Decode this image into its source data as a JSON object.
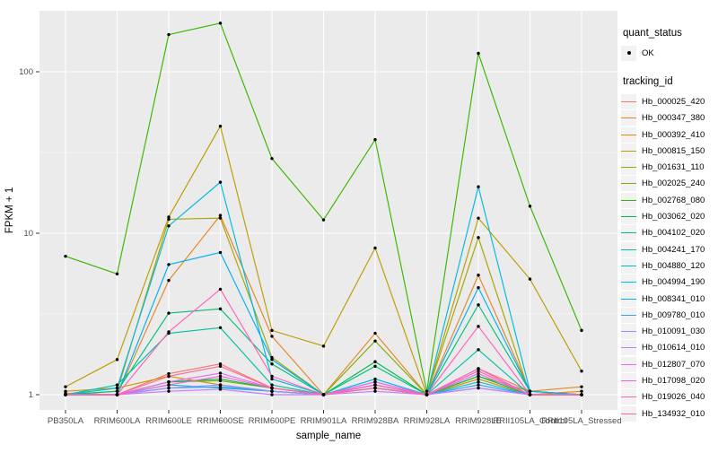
{
  "figure": {
    "colors": {
      "panel_bg": "#EBEBEB",
      "grid": "#FFFFFF",
      "axis_text": "#4D4D4D",
      "tick_mark": "#333333",
      "title_text": "#000000",
      "legend_key_bg": "#F2F2F2",
      "point": "#000000"
    }
  },
  "chart_data": {
    "type": "line",
    "title": "",
    "xlabel": "sample_name",
    "ylabel": "FPKM + 1",
    "y_scale": "log10",
    "y_ticks": [
      1,
      10,
      100
    ],
    "y_tick_labels": [
      "1",
      "10",
      "100"
    ],
    "y_minor_ticks": [
      3.1623,
      31.623
    ],
    "ylim": [
      0.95,
      250
    ],
    "grid": true,
    "legend_position": "right",
    "point_color": "#000000",
    "legends": {
      "quant_status": {
        "title": "quant_status",
        "items": [
          {
            "label": "OK",
            "marker": "black-point"
          }
        ]
      },
      "tracking_id": {
        "title": "tracking_id"
      }
    },
    "categories": [
      "PB350LA",
      "RRIM600LA",
      "RRIM600LE",
      "RRIM600SE",
      "RRIM600PE",
      "RRIM901LA",
      "RRIM928BA",
      "RRIM928LA",
      "RRIM928LE",
      "RRII105LA_Control",
      "RRII105LA_Stressed"
    ],
    "series": [
      {
        "name": "Hb_000025_420",
        "color": "#F8766D",
        "values": [
          1.0,
          1.0,
          1.35,
          1.55,
          1.1,
          1.0,
          1.15,
          1.0,
          1.45,
          1.05,
          1.0
        ]
      },
      {
        "name": "Hb_000347_380",
        "color": "#E88526",
        "values": [
          1.02,
          1.0,
          5.1,
          12.9,
          2.3,
          1.0,
          2.4,
          1.0,
          5.5,
          1.05,
          1.12
        ]
      },
      {
        "name": "Hb_000392_410",
        "color": "#D39200",
        "values": [
          1.05,
          1.1,
          1.3,
          1.15,
          1.05,
          1.0,
          1.1,
          1.0,
          1.25,
          1.0,
          1.05
        ]
      },
      {
        "name": "Hb_000815_150",
        "color": "#BB9D00",
        "values": [
          1.12,
          1.65,
          12.6,
          46,
          2.5,
          2.0,
          8.1,
          1.0,
          12.4,
          5.2,
          1.4
        ]
      },
      {
        "name": "Hb_001631_110",
        "color": "#A3A500",
        "values": [
          1.0,
          1.05,
          12.2,
          12.4,
          1.7,
          1.0,
          1.1,
          1.0,
          9.4,
          1.0,
          1.0
        ]
      },
      {
        "name": "Hb_002025_240",
        "color": "#7CAE00",
        "values": [
          1.0,
          1.0,
          1.2,
          1.22,
          1.1,
          1.0,
          2.15,
          1.0,
          1.3,
          1.05,
          1.0
        ]
      },
      {
        "name": "Hb_002768_080",
        "color": "#39B600",
        "values": [
          7.2,
          5.6,
          170,
          200,
          29,
          12.1,
          38,
          1.05,
          130,
          14.7,
          2.5
        ]
      },
      {
        "name": "Hb_003062_020",
        "color": "#00BB4E",
        "values": [
          1.0,
          1.0,
          1.2,
          1.25,
          1.1,
          1.0,
          1.6,
          1.0,
          1.3,
          1.0,
          1.0
        ]
      },
      {
        "name": "Hb_004102_020",
        "color": "#00BF7D",
        "values": [
          1.0,
          1.05,
          3.2,
          3.4,
          1.55,
          1.0,
          1.5,
          1.0,
          3.6,
          1.05,
          1.0
        ]
      },
      {
        "name": "Hb_004241_170",
        "color": "#00C1A3",
        "values": [
          1.0,
          1.15,
          2.4,
          2.6,
          1.15,
          1.0,
          1.1,
          1.0,
          1.9,
          1.0,
          1.0
        ]
      },
      {
        "name": "Hb_004880_120",
        "color": "#00BFC4",
        "values": [
          1.0,
          1.0,
          1.15,
          1.1,
          1.05,
          1.0,
          1.1,
          1.0,
          1.2,
          1.0,
          1.0
        ]
      },
      {
        "name": "Hb_004994_190",
        "color": "#00BAE0",
        "values": [
          1.0,
          1.1,
          11.1,
          20.7,
          1.25,
          1.0,
          1.15,
          1.0,
          19.4,
          1.05,
          1.0
        ]
      },
      {
        "name": "Hb_008341_010",
        "color": "#00B0F6",
        "values": [
          1.0,
          1.0,
          6.4,
          7.6,
          1.65,
          1.0,
          1.25,
          1.0,
          4.6,
          1.05,
          1.0
        ]
      },
      {
        "name": "Hb_009780_010",
        "color": "#35A2FF",
        "values": [
          1.0,
          1.0,
          1.1,
          1.12,
          1.05,
          1.0,
          1.2,
          1.0,
          1.15,
          1.0,
          1.0
        ]
      },
      {
        "name": "Hb_010091_030",
        "color": "#9590FF",
        "values": [
          1.0,
          1.0,
          1.1,
          1.15,
          1.05,
          1.0,
          1.1,
          1.0,
          1.1,
          1.0,
          1.0
        ]
      },
      {
        "name": "Hb_010614_010",
        "color": "#C77CFF",
        "values": [
          1.0,
          1.0,
          1.05,
          1.08,
          1.0,
          1.0,
          1.05,
          1.0,
          1.1,
          1.0,
          1.0
        ]
      },
      {
        "name": "Hb_012807_070",
        "color": "#E76BF3",
        "values": [
          1.0,
          1.0,
          1.2,
          1.36,
          1.1,
          1.0,
          1.15,
          1.0,
          1.35,
          1.0,
          1.0
        ]
      },
      {
        "name": "Hb_017098_020",
        "color": "#FA62DB",
        "values": [
          1.0,
          1.0,
          1.15,
          1.3,
          1.1,
          1.0,
          1.2,
          1.0,
          1.45,
          1.0,
          1.0
        ]
      },
      {
        "name": "Hb_019026_040",
        "color": "#FF62BC",
        "values": [
          1.0,
          1.0,
          2.45,
          4.5,
          1.3,
          1.0,
          1.15,
          1.0,
          2.65,
          1.0,
          1.0
        ]
      },
      {
        "name": "Hb_134932_010",
        "color": "#FF6A98",
        "values": [
          1.0,
          1.0,
          1.3,
          1.5,
          1.1,
          1.0,
          1.1,
          1.0,
          1.4,
          1.0,
          1.0
        ]
      }
    ]
  }
}
